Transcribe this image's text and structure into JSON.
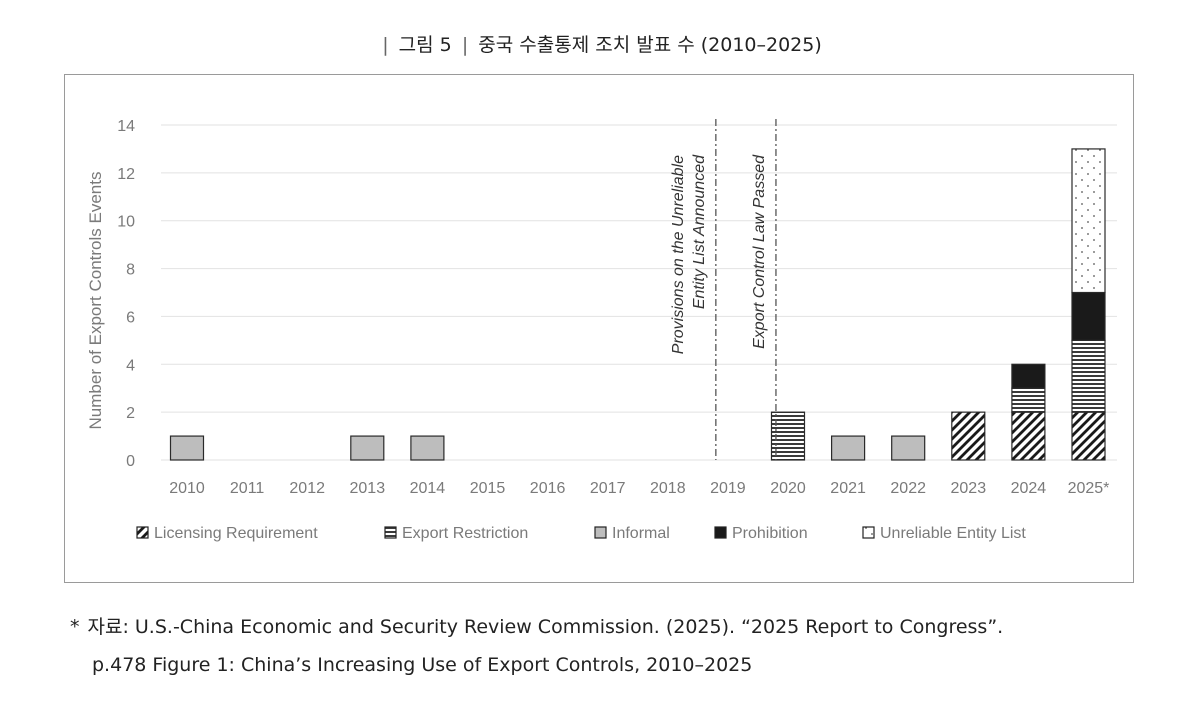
{
  "figure": {
    "label": "그림 5",
    "title": "중국 수출통제 조치 발표 수 (2010–2025)"
  },
  "source": {
    "marker": "*",
    "line1": "자료: U.S.-China Economic and Security Review Commission. (2025). “2025 Report to Congress”.",
    "line2": "p.478 Figure 1: China’s Increasing Use of Export Controls, 2010–2025"
  },
  "chart_data": {
    "type": "bar",
    "stacked": true,
    "ylabel": "Number of Export Controls Events",
    "xlabel": "",
    "ylim": [
      0,
      14
    ],
    "yticks": [
      0,
      2,
      4,
      6,
      8,
      10,
      12,
      14
    ],
    "grid": true,
    "legend_position": "bottom",
    "categories": [
      "2010",
      "2011",
      "2012",
      "2013",
      "2014",
      "2015",
      "2016",
      "2017",
      "2018",
      "2019",
      "2020",
      "2021",
      "2022",
      "2023",
      "2024",
      "2025*"
    ],
    "series": [
      {
        "name": "Licensing Requirement",
        "pattern": "diagonal-hatch",
        "values": [
          0,
          0,
          0,
          0,
          0,
          0,
          0,
          0,
          0,
          0,
          0,
          0,
          0,
          2,
          2,
          2
        ]
      },
      {
        "name": "Export Restriction",
        "pattern": "horizontal-lines",
        "values": [
          0,
          0,
          0,
          0,
          0,
          0,
          0,
          0,
          0,
          0,
          2,
          0,
          0,
          0,
          1,
          3
        ]
      },
      {
        "name": "Informal",
        "pattern": "solid-gray",
        "values": [
          1,
          0,
          0,
          1,
          1,
          0,
          0,
          0,
          0,
          0,
          0,
          1,
          1,
          0,
          0,
          0
        ]
      },
      {
        "name": "Prohibition",
        "pattern": "solid-black",
        "values": [
          0,
          0,
          0,
          0,
          0,
          0,
          0,
          0,
          0,
          0,
          0,
          0,
          0,
          0,
          1,
          2
        ]
      },
      {
        "name": "Unreliable Entity List",
        "pattern": "dotted",
        "values": [
          0,
          0,
          0,
          0,
          0,
          0,
          0,
          0,
          0,
          0,
          0,
          0,
          0,
          0,
          0,
          6
        ]
      }
    ],
    "annotations": [
      {
        "category": "2019",
        "align": "left",
        "lines": [
          "Provisions on the Unreliable",
          "Entity List Announced"
        ]
      },
      {
        "category": "2020",
        "align": "left",
        "lines": [
          "Export Control Law Passed"
        ]
      }
    ],
    "colors": {
      "grid": "#e2e2e2",
      "text": "#7a7a7a",
      "informal_fill": "#bdbdbd",
      "prohibition_fill": "#1a1a1a",
      "edge": "#2a2a2a"
    }
  }
}
